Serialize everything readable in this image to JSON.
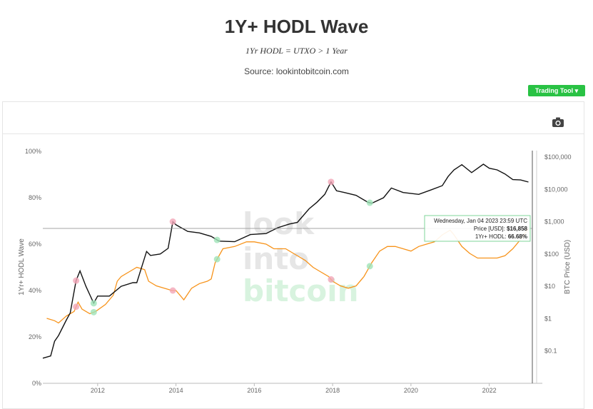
{
  "header": {
    "title": "1Y+ HODL Wave",
    "subtitle": "1Yr HODL = UTXO > 1 Year",
    "source": "Source: lookintobitcoin.com",
    "trading_tool_label": "Trading Tool ▾"
  },
  "watermark": [
    "look",
    "into",
    "bitcoin"
  ],
  "tooltip": {
    "date": "Wednesday, Jan 04 2023 23:59 UTC",
    "price_label": "Price [USD]:",
    "price_value": "$16,858",
    "hodl_label": "1Yr+ HODL:",
    "hodl_value": "66.68%"
  },
  "colors": {
    "price_line": "#111111",
    "hodl_line": "#f7931a",
    "top_marker": "#f2a6b8",
    "bottom_marker": "#9fe3b8",
    "trading_tool_bg": "#29c244",
    "crosshair": "#888888"
  },
  "chart_data": {
    "type": "line",
    "title": "1Y+ HODL Wave",
    "subtitle": "1Yr HODL = UTXO > 1 Year",
    "x_ticks": [
      "2012",
      "2014",
      "2016",
      "2018",
      "2020",
      "2022"
    ],
    "xlim": [
      2010.6,
      2023.1
    ],
    "left_axis": {
      "label": "1Yr+ HODL Wave",
      "ticks": [
        "0%",
        "20%",
        "40%",
        "60%",
        "80%",
        "100%"
      ],
      "ylim": [
        0,
        100
      ]
    },
    "right_axis": {
      "label": "BTC Price (USD)",
      "scale": "log",
      "ticks": [
        "$0.1",
        "$1",
        "$10",
        "$100",
        "$1,000",
        "$10,000",
        "$100,000"
      ],
      "ylim": [
        0.01,
        150000
      ]
    },
    "series": [
      {
        "name": "1Yr+ HODL",
        "axis": "left",
        "x": [
          2010.7,
          2010.9,
          2011.0,
          2011.2,
          2011.4,
          2011.5,
          2011.6,
          2011.8,
          2011.95,
          2012.2,
          2012.4,
          2012.5,
          2012.6,
          2012.8,
          2013.0,
          2013.2,
          2013.3,
          2013.5,
          2013.7,
          2013.9,
          2014.0,
          2014.1,
          2014.2,
          2014.4,
          2014.6,
          2014.8,
          2014.9,
          2015.0,
          2015.2,
          2015.5,
          2015.8,
          2016.0,
          2016.3,
          2016.5,
          2016.8,
          2017.0,
          2017.3,
          2017.5,
          2017.7,
          2017.9,
          2018.0,
          2018.2,
          2018.4,
          2018.6,
          2018.8,
          2019.0,
          2019.2,
          2019.4,
          2019.6,
          2019.8,
          2020.0,
          2020.2,
          2020.4,
          2020.6,
          2020.8,
          2021.0,
          2021.1,
          2021.3,
          2021.5,
          2021.7,
          2021.9,
          2022.0,
          2022.2,
          2022.4,
          2022.6,
          2022.8,
          2023.0
        ],
        "values": [
          28,
          27,
          26,
          29,
          31,
          35,
          32,
          30,
          31,
          34,
          38,
          44,
          46,
          48,
          50,
          49,
          44,
          42,
          41,
          40,
          40,
          38,
          36,
          41,
          43,
          44,
          45,
          52,
          58,
          59,
          61,
          61,
          60,
          58,
          58,
          56,
          53,
          50,
          48,
          46,
          44,
          42,
          41,
          42,
          46,
          52,
          57,
          59,
          59,
          58,
          57,
          59,
          60,
          61,
          64,
          66,
          64,
          59,
          56,
          54,
          54,
          54,
          54,
          55,
          58,
          62,
          66.68
        ]
      },
      {
        "name": "Price [USD]",
        "axis": "right",
        "x": [
          2010.6,
          2010.8,
          2010.9,
          2011.0,
          2011.2,
          2011.3,
          2011.45,
          2011.55,
          2011.7,
          2011.9,
          2012.0,
          2012.3,
          2012.6,
          2012.9,
          2013.0,
          2013.25,
          2013.35,
          2013.6,
          2013.8,
          2013.92,
          2014.0,
          2014.3,
          2014.6,
          2014.9,
          2015.1,
          2015.5,
          2015.9,
          2016.3,
          2016.6,
          2016.9,
          2017.1,
          2017.4,
          2017.6,
          2017.8,
          2017.96,
          2018.1,
          2018.3,
          2018.6,
          2018.9,
          2019.0,
          2019.3,
          2019.5,
          2019.8,
          2020.2,
          2020.5,
          2020.8,
          2020.95,
          2021.1,
          2021.3,
          2021.55,
          2021.85,
          2022.0,
          2022.2,
          2022.4,
          2022.6,
          2022.8,
          2023.0
        ],
        "values": [
          0.06,
          0.07,
          0.2,
          0.3,
          0.9,
          1.5,
          15,
          30,
          10,
          3,
          5,
          5,
          10,
          13,
          13,
          120,
          90,
          100,
          150,
          1000,
          800,
          500,
          450,
          350,
          250,
          240,
          400,
          430,
          650,
          850,
          950,
          2500,
          4000,
          7000,
          17000,
          9000,
          8000,
          6500,
          4000,
          3700,
          5500,
          11000,
          8000,
          7000,
          9500,
          13000,
          25000,
          40000,
          58000,
          33000,
          60000,
          45000,
          40000,
          30000,
          20000,
          19500,
          16858
        ]
      }
    ],
    "cycle_tops": [
      2011.45,
      2013.92,
      2017.96
    ],
    "cycle_bottoms": [
      2011.9,
      2015.05,
      2018.95
    ],
    "legend": "none"
  }
}
